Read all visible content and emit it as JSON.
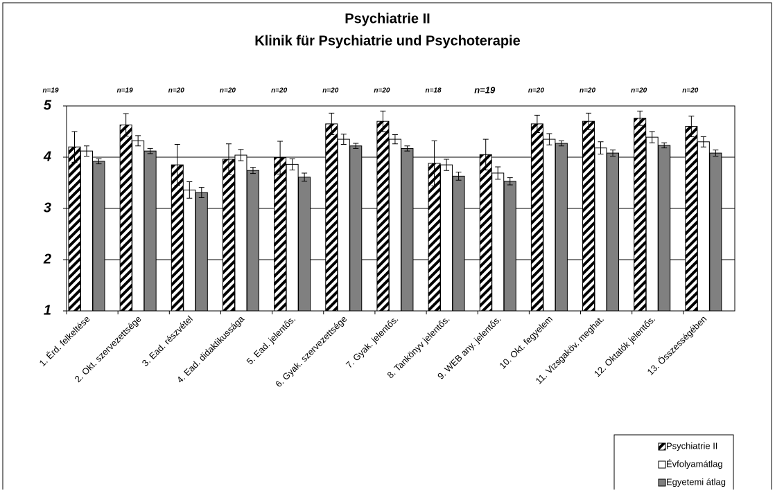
{
  "chart_data": {
    "type": "bar",
    "title": "Psychiatrie II",
    "subtitle": "Klinik für Psychiatrie und Psychoterapie",
    "categories": [
      "1. Érd. felkeltése",
      "2. Okt. szervezettsége",
      "3. Ead. részvétel",
      "4. Ead. didaktikussága",
      "5. Ead. jelentős.",
      "6. Gyak. szervezettsége",
      "7. Gyak. jelentős.",
      "8. Tankönyv jelentős.",
      "9. WEB any. jelentős.",
      "10. Okt. fegyelem",
      "11. Vizsgaköv. meghat.",
      "12. Oktatók jelentős.",
      "13. Összességében"
    ],
    "annotations": [
      "n=19",
      "n=19",
      "n=20",
      "n=20",
      "n=20",
      "n=20",
      "n=20",
      "n=18",
      "n=19",
      "n=20",
      "n=20",
      "n=20",
      "n=20"
    ],
    "series": [
      {
        "name": "Psychiatrie II",
        "color": "hatched",
        "values": [
          4.2,
          4.63,
          3.85,
          3.96,
          3.99,
          4.65,
          4.7,
          3.88,
          4.05,
          4.65,
          4.7,
          4.76,
          4.6
        ],
        "errors": [
          0.3,
          0.22,
          0.4,
          0.3,
          0.32,
          0.21,
          0.2,
          0.44,
          0.3,
          0.17,
          0.16,
          0.14,
          0.2
        ]
      },
      {
        "name": "Évfolyamátlag",
        "color": "#ffffff",
        "values": [
          4.12,
          4.32,
          3.36,
          4.04,
          3.86,
          4.35,
          4.35,
          3.85,
          3.69,
          4.35,
          4.18,
          4.39,
          4.3
        ],
        "errors": [
          0.1,
          0.1,
          0.16,
          0.11,
          0.11,
          0.1,
          0.09,
          0.11,
          0.12,
          0.11,
          0.12,
          0.11,
          0.1
        ]
      },
      {
        "name": "Egyetemi átlag",
        "color": "#808080",
        "values": [
          3.92,
          4.12,
          3.31,
          3.74,
          3.61,
          4.22,
          4.17,
          3.63,
          3.53,
          4.27,
          4.08,
          4.23,
          4.08
        ],
        "errors": [
          0.05,
          0.05,
          0.1,
          0.06,
          0.08,
          0.05,
          0.05,
          0.08,
          0.07,
          0.05,
          0.06,
          0.05,
          0.06
        ]
      }
    ],
    "ylim": [
      1,
      5
    ],
    "yticks": [
      1,
      2,
      3,
      4,
      5
    ],
    "grid": true,
    "legend": "bottom-right"
  }
}
